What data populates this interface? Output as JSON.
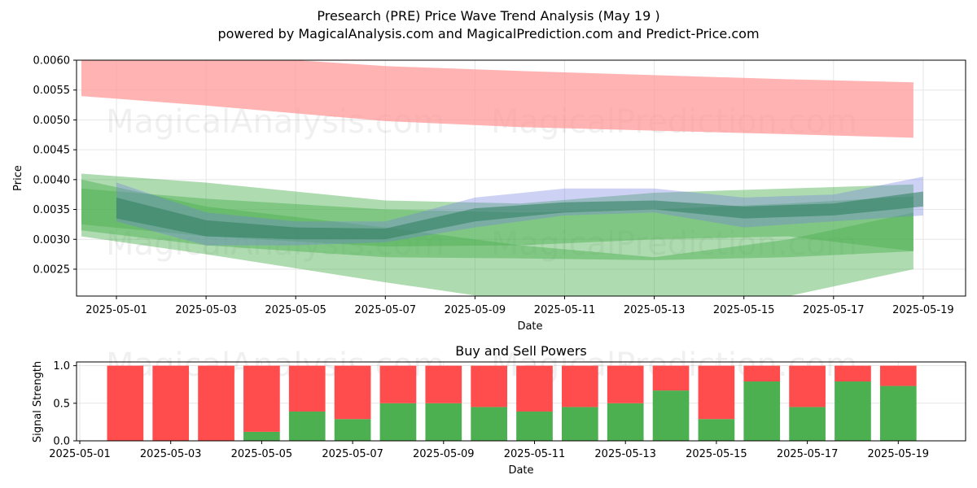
{
  "header": {
    "title": "Presearch (PRE) Price Wave Trend Analysis (May 19 )",
    "subtitle": "powered by MagicalAnalysis.com and MagicalPrediction.com and Predict-Price.com"
  },
  "watermarks": [
    "MagicalAnalysis.com",
    "MagicalPrediction.com"
  ],
  "colors": {
    "red_band": "#ff9999",
    "green_band": "#4caf50",
    "blue_band": "#6f7fe0",
    "buy": "#4caf50",
    "sell": "#ff4d4d"
  },
  "chart_data": [
    {
      "type": "area",
      "xlabel": "Date",
      "ylabel": "Price",
      "ylim": [
        0.00205,
        0.006
      ],
      "xlim": [
        "2025-04-30",
        "2025-05-20"
      ],
      "x_ticks": [
        "2025-05-01",
        "2025-05-03",
        "2025-05-05",
        "2025-05-07",
        "2025-05-09",
        "2025-05-11",
        "2025-05-13",
        "2025-05-15",
        "2025-05-17",
        "2025-05-19"
      ],
      "y_ticks": [
        "0.0025",
        "0.0030",
        "0.0035",
        "0.0040",
        "0.0045",
        "0.0050",
        "0.0055",
        "0.0060"
      ],
      "grid": true,
      "series": [
        {
          "band": "red",
          "x": [
            "2025-04-30",
            "2025-05-03",
            "2025-05-07",
            "2025-05-10",
            "2025-05-13",
            "2025-05-16",
            "2025-05-19"
          ],
          "upper": [
            0.0061,
            0.0061,
            0.0059,
            0.00582,
            0.00575,
            0.00568,
            0.00563
          ],
          "lower": [
            0.0054,
            0.00524,
            0.00498,
            0.00488,
            0.00482,
            0.00476,
            0.0047
          ]
        },
        {
          "band": "green",
          "x": [
            "2025-04-30",
            "2025-05-03",
            "2025-05-07",
            "2025-05-10",
            "2025-05-13",
            "2025-05-16",
            "2025-05-19"
          ],
          "upper": [
            0.0041,
            0.00395,
            0.00365,
            0.0036,
            0.00378,
            0.00385,
            0.00392
          ],
          "lower": [
            0.00305,
            0.00275,
            0.00228,
            0.00195,
            0.00185,
            0.00205,
            0.0025
          ]
        },
        {
          "band": "green",
          "x": [
            "2025-04-30",
            "2025-05-03",
            "2025-05-07",
            "2025-05-10",
            "2025-05-13",
            "2025-05-16",
            "2025-05-19"
          ],
          "upper": [
            0.004,
            0.00355,
            0.0032,
            0.0029,
            0.0027,
            0.003,
            0.00345
          ],
          "lower": [
            0.00315,
            0.0029,
            0.0027,
            0.00268,
            0.00265,
            0.0027,
            0.0028
          ]
        },
        {
          "band": "green",
          "x": [
            "2025-04-30",
            "2025-05-03",
            "2025-05-07",
            "2025-05-10",
            "2025-05-13",
            "2025-05-16",
            "2025-05-19"
          ],
          "upper": [
            0.00385,
            0.00368,
            0.0035,
            0.00345,
            0.0035,
            0.0036,
            0.00372
          ],
          "lower": [
            0.00325,
            0.00305,
            0.00288,
            0.0029,
            0.003,
            0.00305,
            0.0028
          ]
        },
        {
          "band": "blue",
          "x": [
            "2025-05-01",
            "2025-05-03",
            "2025-05-05",
            "2025-05-07",
            "2025-05-09",
            "2025-05-11",
            "2025-05-13",
            "2025-05-15",
            "2025-05-17",
            "2025-05-19"
          ],
          "upper": [
            0.00395,
            0.00345,
            0.0033,
            0.0033,
            0.0037,
            0.00385,
            0.00385,
            0.0037,
            0.00375,
            0.00405
          ],
          "lower": [
            0.0033,
            0.0029,
            0.0029,
            0.00295,
            0.0032,
            0.0034,
            0.00345,
            0.0032,
            0.0033,
            0.0034
          ]
        },
        {
          "band": "core",
          "x": [
            "2025-05-01",
            "2025-05-03",
            "2025-05-05",
            "2025-05-07",
            "2025-05-09",
            "2025-05-11",
            "2025-05-13",
            "2025-05-15",
            "2025-05-17",
            "2025-05-19"
          ],
          "upper": [
            0.0037,
            0.00332,
            0.0032,
            0.00318,
            0.00352,
            0.00362,
            0.00365,
            0.00355,
            0.0036,
            0.0038
          ],
          "lower": [
            0.00335,
            0.00305,
            0.003,
            0.003,
            0.0033,
            0.00345,
            0.0035,
            0.00335,
            0.0034,
            0.00355
          ]
        }
      ]
    },
    {
      "type": "bar",
      "title": "Buy and Sell Powers",
      "xlabel": "Date",
      "ylabel": "Signal Strength",
      "ylim": [
        0,
        1.05
      ],
      "xlim": [
        "2025-05-01",
        "2025-05-20"
      ],
      "x_ticks": [
        "2025-05-01",
        "2025-05-03",
        "2025-05-05",
        "2025-05-07",
        "2025-05-09",
        "2025-05-11",
        "2025-05-13",
        "2025-05-15",
        "2025-05-17",
        "2025-05-19"
      ],
      "y_ticks": [
        "0.0",
        "0.5",
        "1.0"
      ],
      "grid": true,
      "categories": [
        "2025-05-02",
        "2025-05-03",
        "2025-05-04",
        "2025-05-05",
        "2025-05-06",
        "2025-05-07",
        "2025-05-08",
        "2025-05-09",
        "2025-05-10",
        "2025-05-11",
        "2025-05-12",
        "2025-05-13",
        "2025-05-14",
        "2025-05-15",
        "2025-05-16",
        "2025-05-17",
        "2025-05-18",
        "2025-05-19"
      ],
      "series": [
        {
          "values": [
            0,
            0,
            0,
            0.12,
            0.39,
            0.29,
            0.5,
            0.5,
            0.45,
            0.39,
            0.45,
            0.5,
            0.67,
            0.29,
            0.79,
            0.45,
            0.79,
            0.73
          ]
        },
        {
          "values": [
            1,
            1,
            1,
            0.88,
            0.61,
            0.71,
            0.5,
            0.5,
            0.55,
            0.61,
            0.55,
            0.5,
            0.33,
            0.71,
            0.21,
            0.55,
            0.21,
            0.27
          ]
        }
      ]
    }
  ]
}
